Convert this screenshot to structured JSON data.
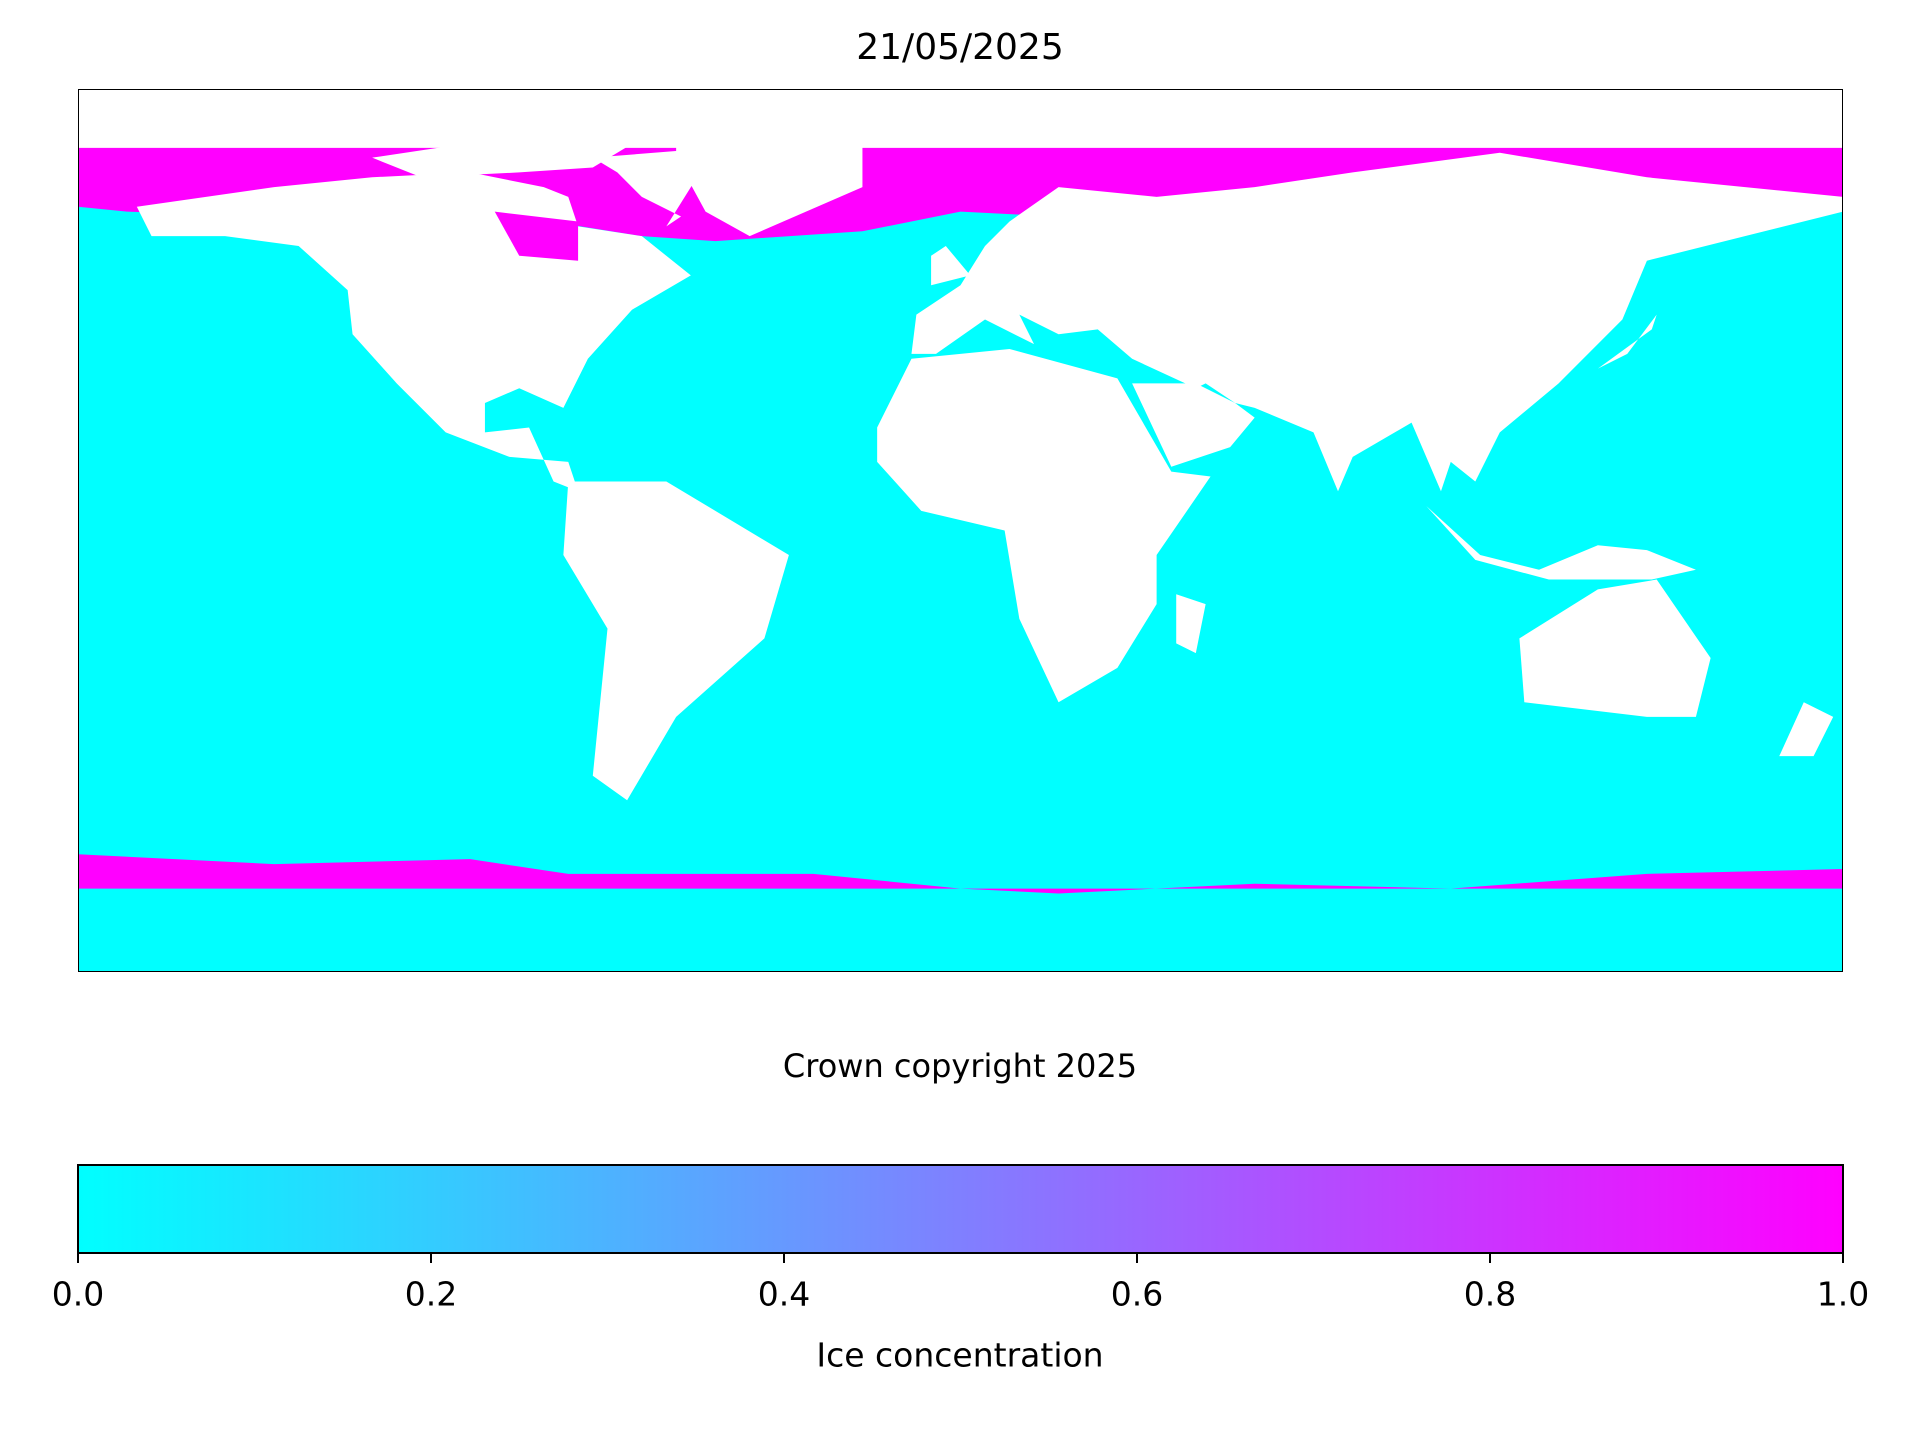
{
  "title": "21/05/2025",
  "credit": "Crown copyright 2025",
  "colorbar": {
    "label": "Ice concentration",
    "colormap": [
      "#00ffff",
      "#ff00ff"
    ],
    "clim": [
      0,
      1
    ],
    "ticks": [
      {
        "value": 0,
        "label": "0.0"
      },
      {
        "value": 0.2,
        "label": "0.2"
      },
      {
        "value": 0.4,
        "label": "0.4"
      },
      {
        "value": 0.6,
        "label": "0.6"
      },
      {
        "value": 0.8,
        "label": "0.8"
      },
      {
        "value": 1,
        "label": "1.0"
      }
    ]
  }
}
